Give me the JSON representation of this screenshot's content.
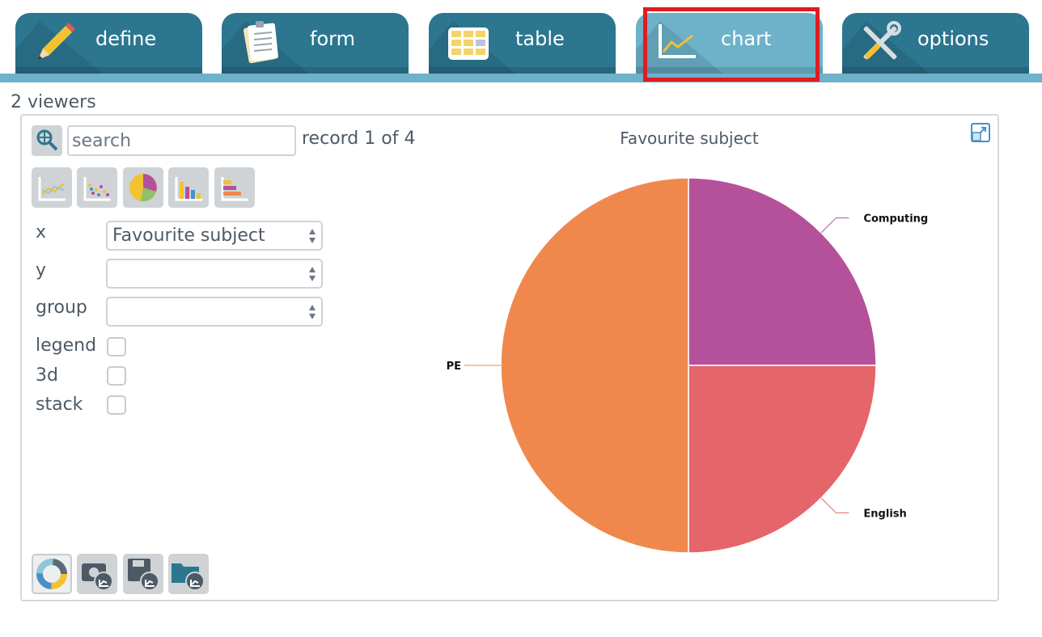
{
  "tabs": [
    {
      "label": "define",
      "icon": "pencil-icon",
      "active": false
    },
    {
      "label": "form",
      "icon": "clipboard-icon",
      "active": false
    },
    {
      "label": "table",
      "icon": "table-grid-icon",
      "active": false
    },
    {
      "label": "chart",
      "icon": "line-chart-icon",
      "active": true
    },
    {
      "label": "options",
      "icon": "tools-icon",
      "active": false
    }
  ],
  "viewers": "2 viewers",
  "toolbar": {
    "search_placeholder": "search",
    "record_text": "record 1 of 4",
    "chart_type_buttons": [
      "line-chart-icon",
      "scatter-chart-icon",
      "pie-chart-icon",
      "bar-chart-icon",
      "horizontal-bar-chart-icon"
    ]
  },
  "fields": {
    "x": {
      "label": "x",
      "value": "Favourite subject"
    },
    "y": {
      "label": "y",
      "value": ""
    },
    "group": {
      "label": "group",
      "value": ""
    }
  },
  "options": {
    "legend": {
      "label": "legend",
      "checked": false
    },
    "three_d": {
      "label": "3d",
      "checked": false
    },
    "stack": {
      "label": "stack",
      "checked": false
    }
  },
  "bottom_buttons": [
    "palette-icon",
    "camera-chart-icon",
    "save-chart-icon",
    "open-chart-icon"
  ],
  "colors": {
    "tab": "#2c7690",
    "tab_active": "#6db2c9",
    "highlight": "#e11b22"
  },
  "chart_data": {
    "type": "pie",
    "title": "Favourite subject",
    "slices": [
      {
        "label": "Computing",
        "value": 1,
        "color": "#b5519a"
      },
      {
        "label": "English",
        "value": 1,
        "color": "#e4656a"
      },
      {
        "label": "PE",
        "value": 2,
        "color": "#f0884d"
      }
    ]
  }
}
